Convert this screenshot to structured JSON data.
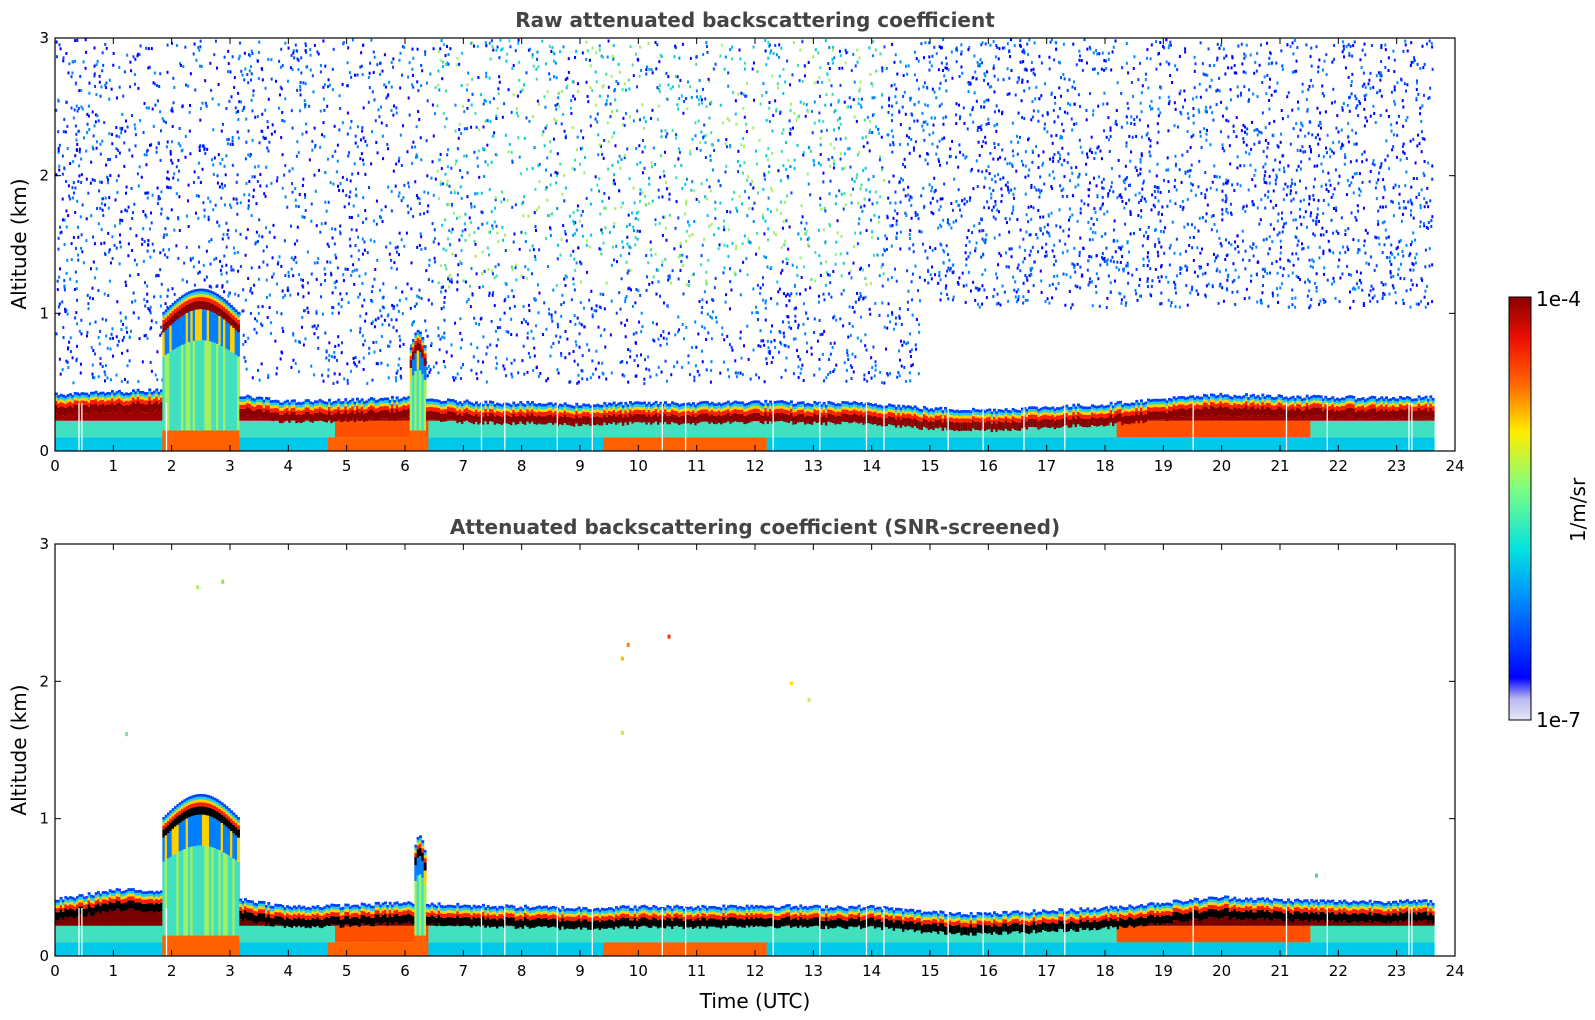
{
  "chart_data": [
    {
      "type": "heatmap",
      "title": "Raw attenuated backscattering coefficient",
      "xlabel": "",
      "ylabel": "Altitude (km)",
      "xlim": [
        0,
        24
      ],
      "ylim": [
        0,
        3
      ],
      "x_ticks": [
        "0",
        "1",
        "2",
        "3",
        "4",
        "5",
        "6",
        "7",
        "8",
        "9",
        "10",
        "11",
        "12",
        "13",
        "14",
        "15",
        "16",
        "17",
        "18",
        "19",
        "20",
        "21",
        "22",
        "23",
        "24"
      ],
      "y_ticks": [
        "0",
        "1",
        "2",
        "3"
      ],
      "data_end_hour": 23.6,
      "boundary_layer_top_km": [
        [
          0,
          0.38
        ],
        [
          1,
          0.4
        ],
        [
          2,
          0.42
        ],
        [
          3,
          0.38
        ],
        [
          4,
          0.33
        ],
        [
          5,
          0.34
        ],
        [
          6,
          0.36
        ],
        [
          7,
          0.33
        ],
        [
          8,
          0.32
        ],
        [
          9,
          0.31
        ],
        [
          10,
          0.32
        ],
        [
          11,
          0.32
        ],
        [
          12,
          0.33
        ],
        [
          13,
          0.32
        ],
        [
          14,
          0.32
        ],
        [
          15,
          0.28
        ],
        [
          16,
          0.27
        ],
        [
          17,
          0.29
        ],
        [
          18,
          0.31
        ],
        [
          19,
          0.35
        ],
        [
          20,
          0.38
        ],
        [
          21,
          0.37
        ],
        [
          22,
          0.36
        ],
        [
          23,
          0.36
        ],
        [
          23.6,
          0.36
        ]
      ],
      "features": [
        {
          "kind": "convective plume",
          "start_hour": 1.85,
          "end_hour": 3.15,
          "top_km": 1.15
        },
        {
          "kind": "plume",
          "start_hour": 6.1,
          "end_hour": 6.35,
          "top_km": 0.85
        },
        {
          "kind": "noise",
          "start_hour": 0,
          "end_hour": 14.8,
          "bottom_km": 0.5,
          "top_km": 3.0
        },
        {
          "kind": "noise",
          "start_hour": 14.8,
          "end_hour": 23.6,
          "bottom_km": 1.05,
          "top_km": 3.0
        }
      ]
    },
    {
      "type": "heatmap",
      "title": "Attenuated backscattering coefficient (SNR-screened)",
      "xlabel": "Time (UTC)",
      "ylabel": "Altitude (km)",
      "xlim": [
        0,
        24
      ],
      "ylim": [
        0,
        3
      ],
      "x_ticks": [
        "0",
        "1",
        "2",
        "3",
        "4",
        "5",
        "6",
        "7",
        "8",
        "9",
        "10",
        "11",
        "12",
        "13",
        "14",
        "15",
        "16",
        "17",
        "18",
        "19",
        "20",
        "21",
        "22",
        "23",
        "24"
      ],
      "y_ticks": [
        "0",
        "1",
        "2",
        "3"
      ],
      "data_end_hour": 23.6,
      "boundary_layer_top_km": [
        [
          0,
          0.38
        ],
        [
          1,
          0.45
        ],
        [
          2,
          0.45
        ],
        [
          3,
          0.4
        ],
        [
          4,
          0.33
        ],
        [
          5,
          0.34
        ],
        [
          6,
          0.36
        ],
        [
          7,
          0.34
        ],
        [
          8,
          0.33
        ],
        [
          9,
          0.32
        ],
        [
          10,
          0.33
        ],
        [
          11,
          0.33
        ],
        [
          12,
          0.34
        ],
        [
          13,
          0.33
        ],
        [
          14,
          0.33
        ],
        [
          15,
          0.29
        ],
        [
          16,
          0.28
        ],
        [
          17,
          0.3
        ],
        [
          18,
          0.32
        ],
        [
          19,
          0.36
        ],
        [
          20,
          0.4
        ],
        [
          21,
          0.38
        ],
        [
          22,
          0.37
        ],
        [
          23,
          0.37
        ],
        [
          23.6,
          0.37
        ]
      ],
      "features": [
        {
          "kind": "convective plume",
          "start_hour": 1.85,
          "end_hour": 3.15,
          "top_km": 1.15
        },
        {
          "kind": "plume",
          "start_hour": 6.15,
          "end_hour": 6.35,
          "top_km": 0.85
        }
      ]
    }
  ],
  "colorbar": {
    "label": "1/m/sr",
    "max_label": "1e-4",
    "min_label": "1e-7",
    "colormap": "jet",
    "colors": [
      "#e8e8f8",
      "#b8b8f0",
      "#0000ff",
      "#0088ff",
      "#00e0e0",
      "#80ff80",
      "#ffee00",
      "#ff6000",
      "#ee1000",
      "#8b0000"
    ]
  }
}
